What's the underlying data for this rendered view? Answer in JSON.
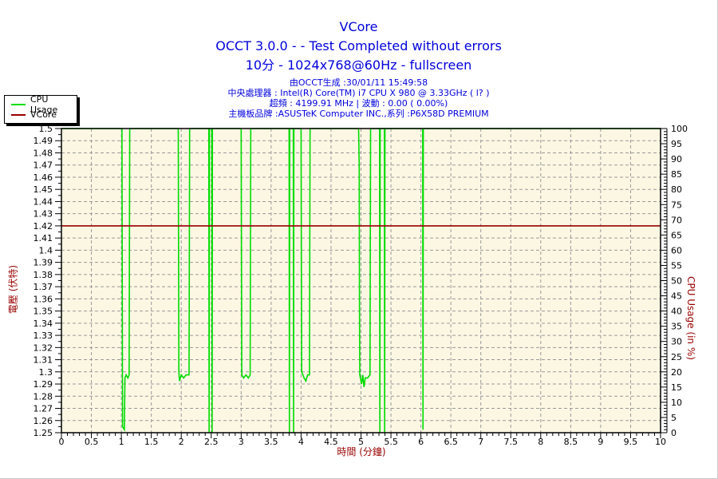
{
  "header": {
    "title": "VCore",
    "subtitle": "OCCT 3.0.0 -  - Test Completed without errors",
    "subtitle2": "10分 - 1024x768@60Hz - fullscreen",
    "info_lines": [
      "由OCCT生成 :30/01/11 15:49:58",
      "中央處理器 : Intel(R) Core(TM) i7 CPU X 980 @ 3.33GHz (  l? )",
      "超頻 : 4199.91 MHz | 波動 : 0.00 ( 0.00%)",
      "主機板品牌 :ASUSTeK Computer INC.,系列 :P6X58D PREMIUM"
    ]
  },
  "legend": {
    "items": [
      {
        "label": "CPU Usage",
        "color": "#00dd00"
      },
      {
        "label": "VCore",
        "color": "#990000"
      }
    ]
  },
  "colors": {
    "title_blue": "#0000dc",
    "axis_label_red": "#990000",
    "plot_bg": "#fcf7e3",
    "grid_gray": "#999999",
    "axis_black": "#000000",
    "cpu_green": "#00dd00",
    "vcore_maroon": "#990000"
  },
  "chart_data": {
    "type": "line",
    "title": "VCore",
    "x_axis": {
      "label": "時間 (分鐘)",
      "min": 0,
      "max": 10,
      "major_step": 0.5,
      "minor_step": 0.1,
      "ticks": [
        "0",
        "0.5",
        "1",
        "1.5",
        "2",
        "2.5",
        "3",
        "3.5",
        "4",
        "4.5",
        "5",
        "5.5",
        "6",
        "6.5",
        "7",
        "7.5",
        "8",
        "8.5",
        "9",
        "9.5",
        "10"
      ]
    },
    "y_left": {
      "label": "電壓 (伏特)",
      "min": 1.25,
      "max": 1.5,
      "major_step": 0.01,
      "minor_step": 0.005,
      "ticks": [
        "1.5",
        "1.49",
        "1.48",
        "1.47",
        "1.46",
        "1.45",
        "1.44",
        "1.43",
        "1.42",
        "1.41",
        "1.4",
        "1.39",
        "1.38",
        "1.37",
        "1.36",
        "1.35",
        "1.34",
        "1.33",
        "1.32",
        "1.31",
        "1.3",
        "1.29",
        "1.28",
        "1.27",
        "1.26",
        "1.25"
      ]
    },
    "y_right": {
      "label": "CPU Usage (in %)",
      "min": 0,
      "max": 100,
      "major_step": 5,
      "minor_step": 1,
      "ticks": [
        "100",
        "95",
        "90",
        "85",
        "80",
        "75",
        "70",
        "65",
        "60",
        "55",
        "50",
        "45",
        "40",
        "35",
        "30",
        "25",
        "20",
        "15",
        "10",
        "5",
        "0"
      ]
    },
    "grid": {
      "h_step": 0.01,
      "v_step": 0.5,
      "color": "#999999",
      "dash": [
        4,
        3
      ]
    },
    "series": [
      {
        "name": "CPU Usage",
        "axis": "right",
        "color": "#00dd00",
        "points": [
          [
            0,
            100
          ],
          [
            1.01,
            100
          ],
          [
            1.02,
            2
          ],
          [
            1.05,
            1
          ],
          [
            1.06,
            18
          ],
          [
            1.08,
            19
          ],
          [
            1.11,
            18
          ],
          [
            1.13,
            19
          ],
          [
            1.14,
            100
          ],
          [
            1.95,
            100
          ],
          [
            1.96,
            20
          ],
          [
            1.97,
            17
          ],
          [
            2.0,
            19
          ],
          [
            2.04,
            18
          ],
          [
            2.08,
            19
          ],
          [
            2.13,
            19
          ],
          [
            2.14,
            100
          ],
          [
            2.46,
            100
          ],
          [
            2.465,
            0
          ],
          [
            2.47,
            100
          ],
          [
            2.51,
            100
          ],
          [
            2.515,
            0
          ],
          [
            2.52,
            100
          ],
          [
            3.0,
            100
          ],
          [
            3.01,
            19
          ],
          [
            3.04,
            18
          ],
          [
            3.08,
            19
          ],
          [
            3.12,
            18
          ],
          [
            3.15,
            19
          ],
          [
            3.16,
            100
          ],
          [
            3.8,
            100
          ],
          [
            3.805,
            0
          ],
          [
            3.81,
            100
          ],
          [
            3.87,
            100
          ],
          [
            3.875,
            0
          ],
          [
            3.88,
            100
          ],
          [
            4.0,
            100
          ],
          [
            4.005,
            55
          ],
          [
            4.01,
            20
          ],
          [
            4.05,
            18
          ],
          [
            4.08,
            17
          ],
          [
            4.11,
            19
          ],
          [
            4.14,
            19
          ],
          [
            4.15,
            100
          ],
          [
            4.96,
            100
          ],
          [
            4.97,
            88
          ],
          [
            4.975,
            40
          ],
          [
            4.98,
            19
          ],
          [
            5.01,
            16
          ],
          [
            5.03,
            19
          ],
          [
            5.05,
            15
          ],
          [
            5.07,
            18
          ],
          [
            5.11,
            18
          ],
          [
            5.15,
            19
          ],
          [
            5.16,
            100
          ],
          [
            5.31,
            100
          ],
          [
            5.315,
            0
          ],
          [
            5.32,
            100
          ],
          [
            5.39,
            100
          ],
          [
            5.395,
            0
          ],
          [
            5.4,
            100
          ],
          [
            6.03,
            100
          ],
          [
            6.035,
            1
          ],
          [
            6.04,
            100
          ],
          [
            10,
            100
          ]
        ]
      },
      {
        "name": "VCore",
        "axis": "left",
        "color": "#990000",
        "points": [
          [
            0,
            1.42
          ],
          [
            10,
            1.42
          ]
        ]
      }
    ]
  }
}
